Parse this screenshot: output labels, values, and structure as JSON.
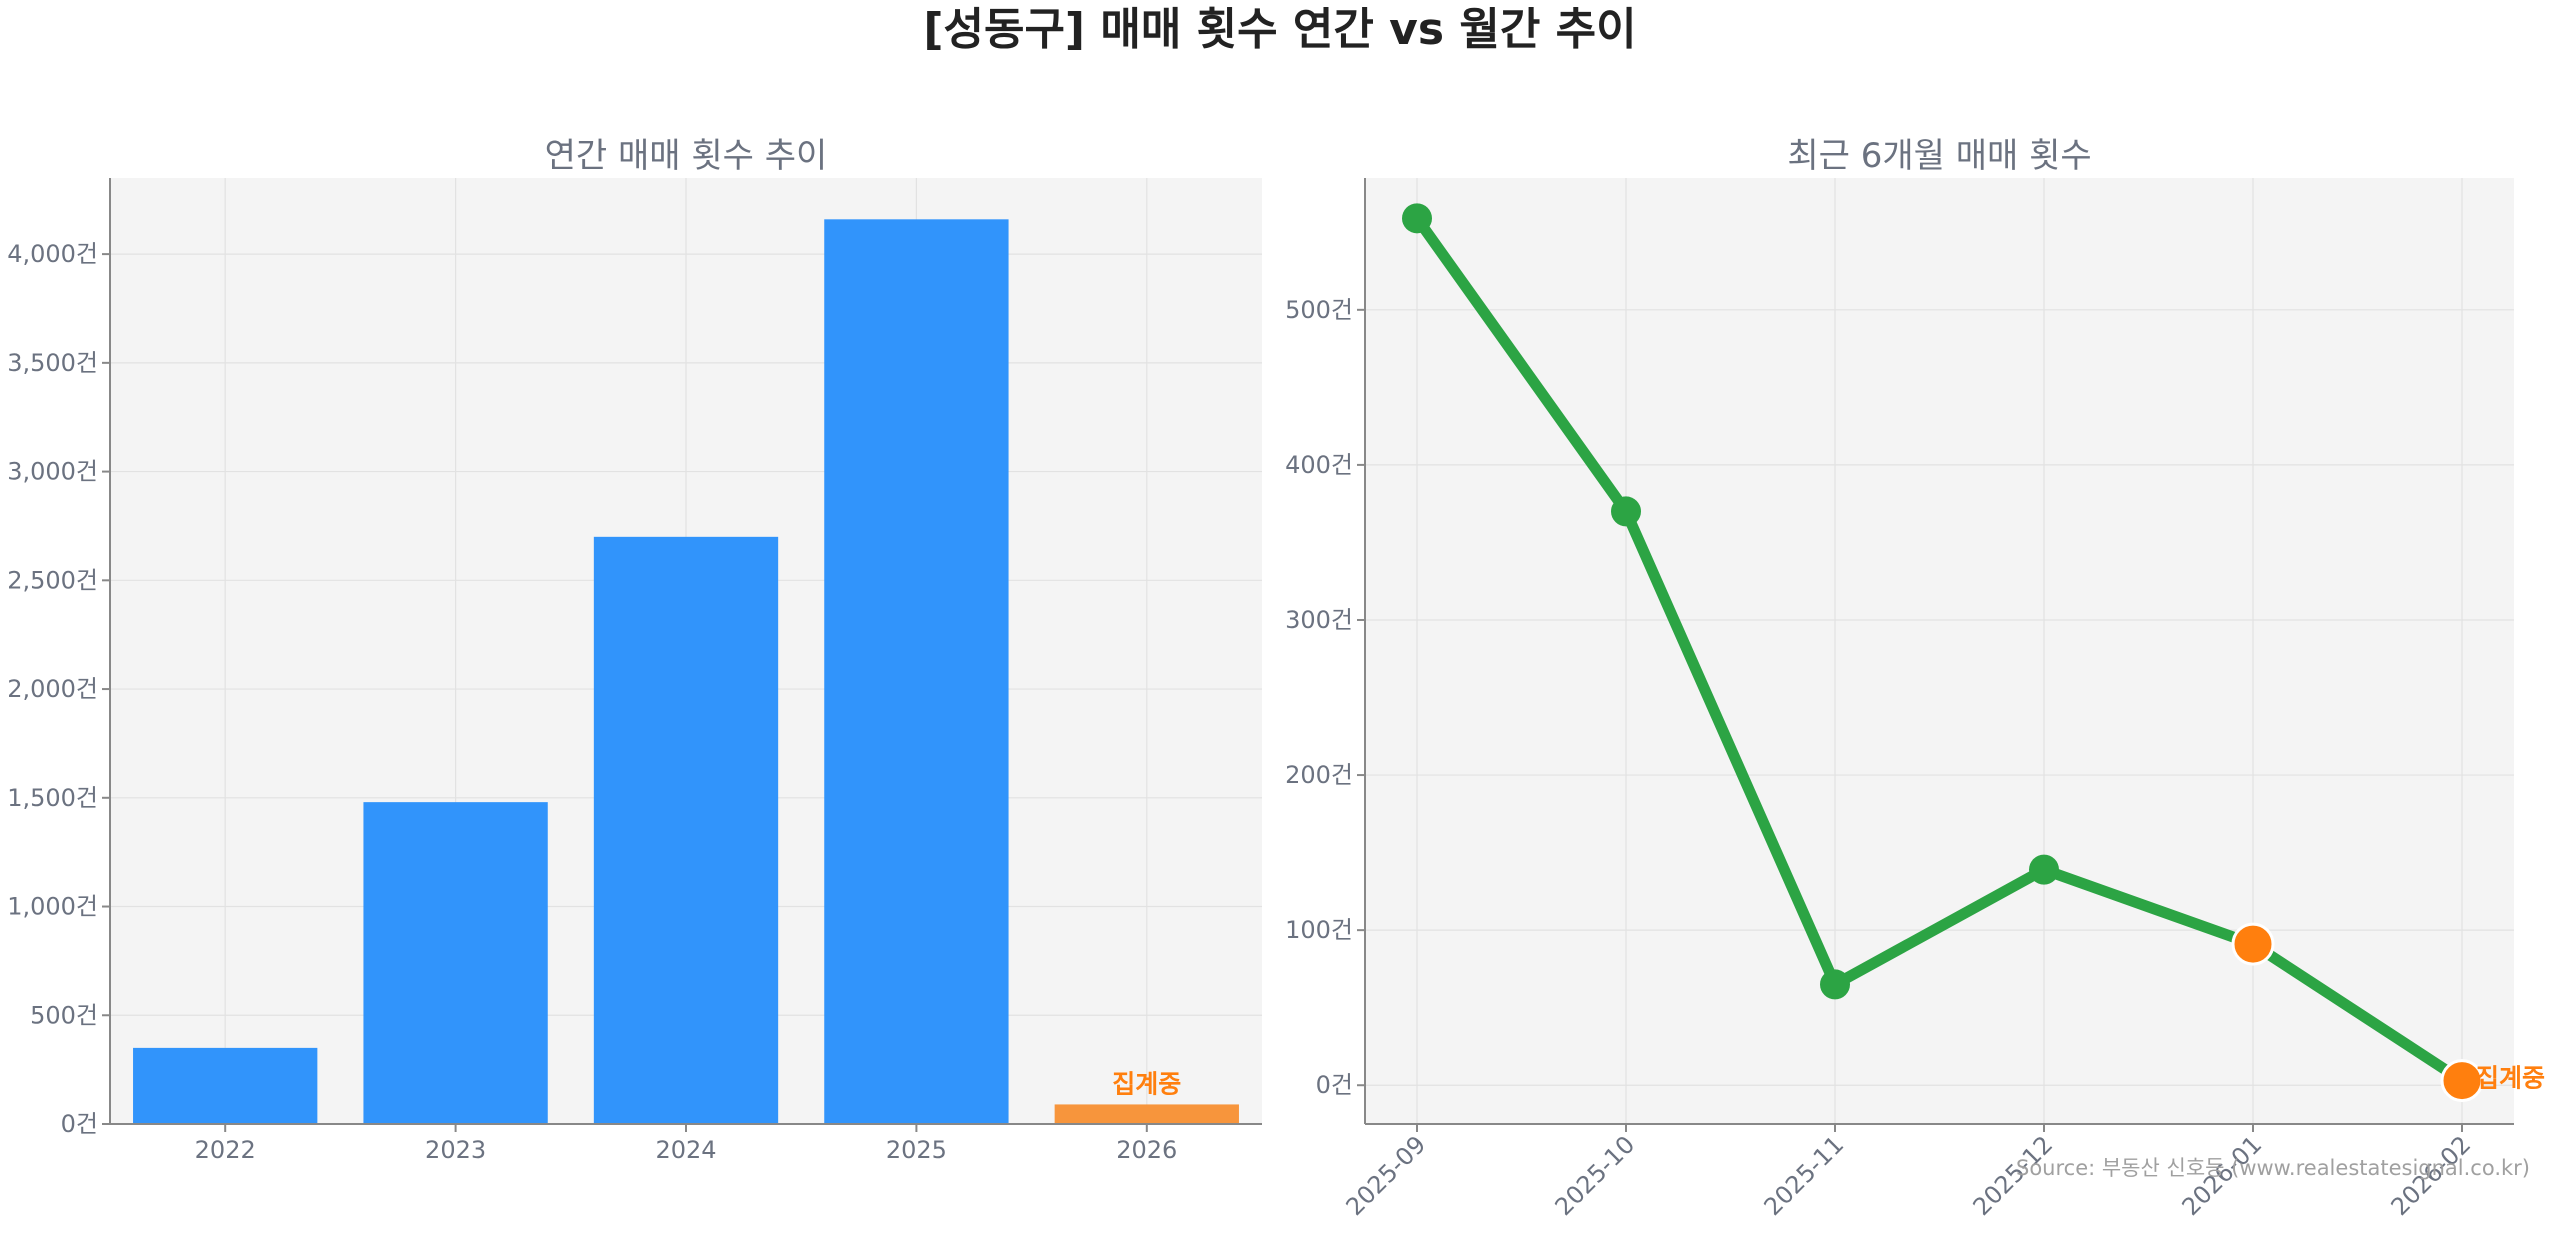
{
  "title": "[성동구] 매매 횟수 연간 vs 월간 추이",
  "source": "Source: 부동산 신호등 (www.realestatesignal.co.kr)",
  "colors": {
    "bar": "#3194fb",
    "bar_pending": "#f7953c",
    "line": "#2ca444",
    "pending_marker": "#ff7f0e",
    "pending_text": "#ff7f0e",
    "panel_bg": "#f4f4f4"
  },
  "chart_data": [
    {
      "type": "bar",
      "title": "연간 매매 횟수 추이",
      "categories": [
        "2022",
        "2023",
        "2024",
        "2025",
        "2026"
      ],
      "values": [
        350,
        1480,
        2700,
        4160,
        90
      ],
      "pending_label": "집계중",
      "pending_index": 4,
      "ylim": [
        0,
        4350
      ],
      "yticks": [
        0,
        500,
        1000,
        1500,
        2000,
        2500,
        3000,
        3500,
        4000
      ],
      "ytick_labels": [
        "0건",
        "500건",
        "1,000건",
        "1,500건",
        "2,000건",
        "2,500건",
        "3,000건",
        "3,500건",
        "4,000건"
      ],
      "grid": true
    },
    {
      "type": "line",
      "title": "최근 6개월 매매 횟수",
      "categories": [
        "2025-09",
        "2025-10",
        "2025-11",
        "2025-12",
        "2026-01",
        "2026-02"
      ],
      "values": [
        559,
        370,
        65,
        139,
        91,
        3
      ],
      "pending_label": "집계중",
      "pending_indices": [
        4,
        5
      ],
      "ylim": [
        -25,
        585
      ],
      "yticks": [
        0,
        100,
        200,
        300,
        400,
        500
      ],
      "ytick_labels": [
        "0건",
        "100건",
        "200건",
        "300건",
        "400건",
        "500건"
      ],
      "grid": true
    }
  ]
}
